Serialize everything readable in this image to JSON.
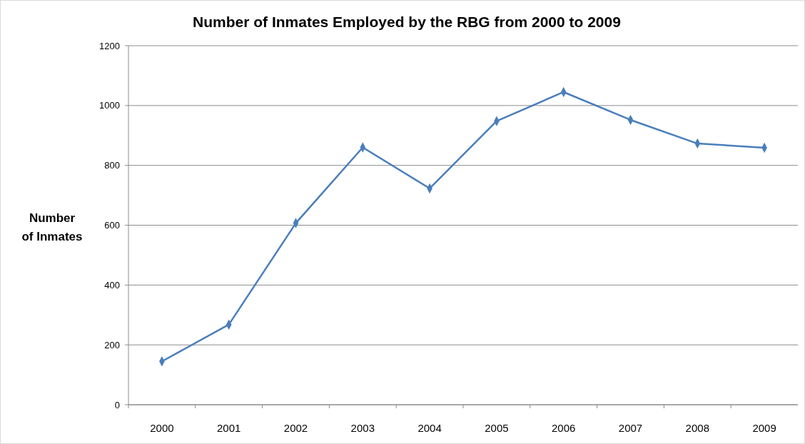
{
  "chart_data": {
    "type": "line",
    "title": "Number of Inmates Employed by the RBG from 2000 to 2009",
    "ylabel": "Number of Inmates",
    "categories": [
      "2000",
      "2001",
      "2002",
      "2003",
      "2004",
      "2005",
      "2006",
      "2007",
      "2008",
      "2009"
    ],
    "series": [
      {
        "color": "#4a7ebb",
        "values": [
          145,
          268,
          607,
          860,
          723,
          948,
          1045,
          952,
          873,
          859
        ]
      }
    ],
    "ylim": [
      0,
      1200
    ],
    "yticks": [
      0,
      200,
      400,
      600,
      800,
      1000,
      1200
    ],
    "grid": "y",
    "marker": "diamond",
    "line_style": "solid"
  }
}
